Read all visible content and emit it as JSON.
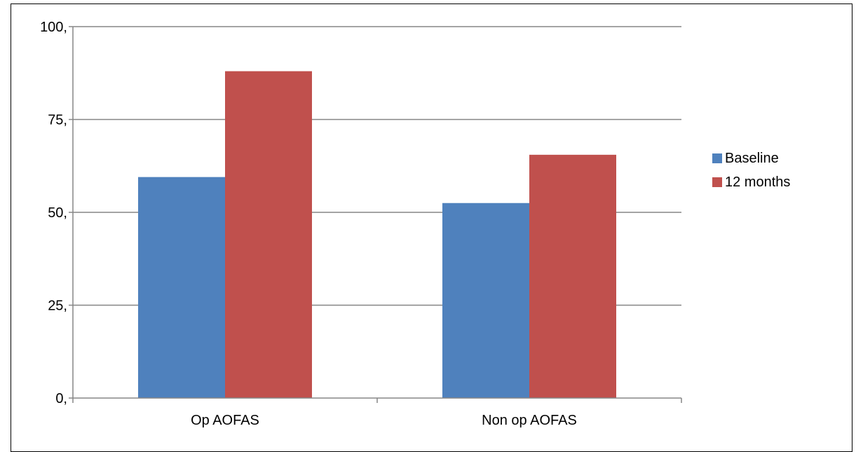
{
  "chart_data": {
    "type": "bar",
    "categories": [
      "Op AOFAS",
      "Non op AOFAS"
    ],
    "series": [
      {
        "name": "Baseline",
        "values": [
          59.5,
          52.5
        ],
        "color": "#4F81BD"
      },
      {
        "name": "12 months",
        "values": [
          88,
          65.5
        ],
        "color": "#C0504D"
      }
    ],
    "y_ticks": [
      "0,",
      "25,",
      "50,",
      "75,",
      "100,"
    ],
    "y_tick_values": [
      0,
      25,
      50,
      75,
      100
    ],
    "ylim": [
      0,
      100
    ],
    "title": "",
    "xlabel": "",
    "ylabel": "",
    "grid": "horizontal",
    "legend_position": "right",
    "axis_color": "#868686",
    "grid_color": "#868686"
  }
}
